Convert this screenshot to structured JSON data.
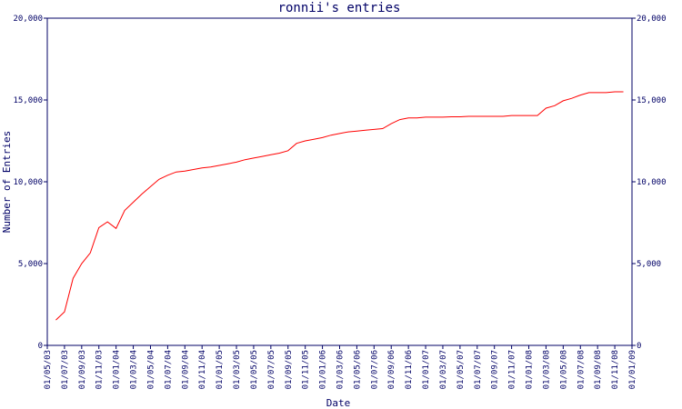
{
  "chart_data": {
    "type": "line",
    "title": "ronnii's entries",
    "x_label": "Date",
    "y_label": "Number of Entries",
    "x": [
      "01/06/03",
      "01/07/03",
      "01/08/03",
      "01/09/03",
      "01/10/03",
      "01/11/03",
      "01/12/03",
      "01/01/04",
      "01/02/04",
      "01/03/04",
      "01/04/04",
      "01/05/04",
      "01/06/04",
      "01/07/04",
      "01/08/04",
      "01/09/04",
      "01/10/04",
      "01/11/04",
      "01/12/04",
      "01/01/05",
      "01/02/05",
      "01/03/05",
      "01/04/05",
      "01/05/05",
      "01/06/05",
      "01/07/05",
      "01/08/05",
      "01/09/05",
      "01/10/05",
      "01/11/05",
      "01/12/05",
      "01/01/06",
      "01/02/06",
      "01/03/06",
      "01/04/06",
      "01/05/06",
      "01/06/06",
      "01/07/06",
      "01/08/06",
      "01/09/06",
      "01/10/06",
      "01/11/06",
      "01/12/06",
      "01/01/07",
      "01/02/07",
      "01/03/07",
      "01/04/07",
      "01/05/07",
      "01/06/07",
      "01/07/07",
      "01/08/07",
      "01/09/07",
      "01/10/07",
      "01/11/07",
      "01/12/07",
      "01/01/08",
      "01/02/08",
      "01/03/08",
      "01/04/08",
      "01/05/08",
      "01/06/08",
      "01/07/08",
      "01/08/08",
      "01/09/08",
      "01/10/08",
      "01/11/08",
      "01/12/08"
    ],
    "series": [
      {
        "name": "entries",
        "color": "#ff0000",
        "values": [
          1550,
          2050,
          4100,
          5000,
          5650,
          7200,
          7550,
          7150,
          8250,
          8750,
          9250,
          9700,
          10150,
          10400,
          10600,
          10650,
          10750,
          10850,
          10900,
          11000,
          11100,
          11200,
          11350,
          11450,
          11550,
          11650,
          11750,
          11900,
          12350,
          12500,
          12600,
          12700,
          12850,
          12950,
          13050,
          13100,
          13150,
          13200,
          13250,
          13550,
          13800,
          13900,
          13900,
          13950,
          13950,
          13950,
          13970,
          13970,
          14000,
          14000,
          14000,
          14000,
          14000,
          14050,
          14050,
          14050,
          14050,
          14500,
          14650,
          14950,
          15100,
          15300,
          15450,
          15450,
          15450,
          15500,
          15500
        ]
      }
    ],
    "xlim": [
      "01/05/03",
      "01/01/09"
    ],
    "xticks": [
      "01/05/03",
      "01/07/03",
      "01/09/03",
      "01/11/03",
      "01/01/04",
      "01/03/04",
      "01/05/04",
      "01/07/04",
      "01/09/04",
      "01/11/04",
      "01/01/05",
      "01/03/05",
      "01/05/05",
      "01/07/05",
      "01/09/05",
      "01/11/05",
      "01/01/06",
      "01/03/06",
      "01/05/06",
      "01/07/06",
      "01/09/06",
      "01/11/06",
      "01/01/07",
      "01/03/07",
      "01/05/07",
      "01/07/07",
      "01/09/07",
      "01/11/07",
      "01/01/08",
      "01/03/08",
      "01/05/08",
      "01/07/08",
      "01/09/08",
      "01/11/08",
      "01/01/09"
    ],
    "ylim": [
      0,
      20000
    ],
    "yticks": [
      0,
      {
        "value": 5000,
        "label": "5,000"
      },
      {
        "value": 10000,
        "label": "10,000"
      },
      {
        "value": 15000,
        "label": "15,000"
      },
      {
        "value": 20000,
        "label": "20,000"
      }
    ],
    "y2lim": [
      0,
      20000
    ],
    "y2ticks": [
      0,
      {
        "value": 5000,
        "label": "5,000"
      },
      {
        "value": 10000,
        "label": "10,000"
      },
      {
        "value": 15000,
        "label": "15,000"
      },
      {
        "value": 20000,
        "label": "20,000"
      }
    ]
  }
}
